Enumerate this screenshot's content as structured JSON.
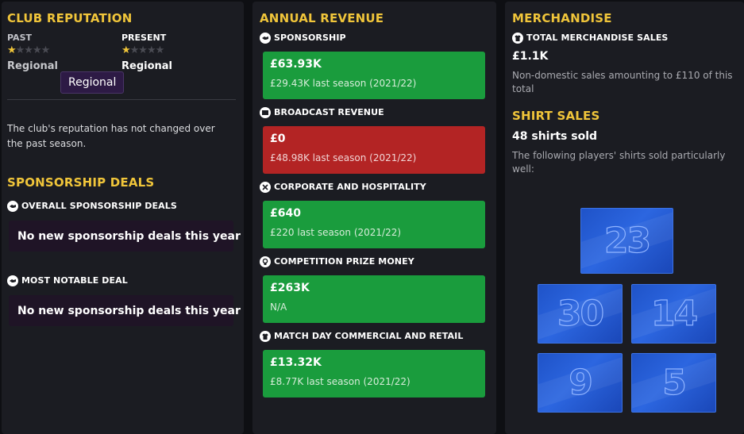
{
  "colors": {
    "heading": "#f0c53a",
    "revenue_positive": "#1a9c3d",
    "revenue_negative": "#b32424",
    "panel_bg": "#1b1c22",
    "tooltip_bg": "#2d1a45",
    "shirt_blue": "#2c66e0"
  },
  "reputation": {
    "title": "CLUB REPUTATION",
    "past_label": "PAST",
    "present_label": "PRESENT",
    "past_stars": 1.5,
    "present_stars": 1.5,
    "max_stars": 5,
    "past_value": "Regional",
    "present_value": "Regional",
    "tooltip": "Regional",
    "description": "The club's reputation has not changed over the past season."
  },
  "sponsorship": {
    "title": "SPONSORSHIP DEALS",
    "overall_label": "OVERALL SPONSORSHIP DEALS",
    "overall_icon": "handshake-icon",
    "overall_text": "No new sponsorship deals this year",
    "notable_label": "MOST NOTABLE DEAL",
    "notable_icon": "handshake-icon",
    "notable_text": "No new sponsorship deals this year"
  },
  "revenue": {
    "title": "ANNUAL REVENUE",
    "items": [
      {
        "label": "SPONSORSHIP",
        "icon": "handshake-icon",
        "value": "£63.93K",
        "previous": "£29.43K last season (2021/22)",
        "status": "green"
      },
      {
        "label": "BROADCAST REVENUE",
        "icon": "tv-icon",
        "value": "£0",
        "previous": "£48.98K last season (2021/22)",
        "status": "red"
      },
      {
        "label": "CORPORATE AND HOSPITALITY",
        "icon": "cutlery-icon",
        "value": "£640",
        "previous": "£220 last season (2021/22)",
        "status": "green"
      },
      {
        "label": "COMPETITION PRIZE MONEY",
        "icon": "trophy-icon",
        "value": "£263K",
        "previous": "N/A",
        "status": "green"
      },
      {
        "label": "MATCH DAY COMMERCIAL AND RETAIL",
        "icon": "shirt-icon",
        "value": "£13.32K",
        "previous": "£8.77K last season (2021/22)",
        "status": "green"
      }
    ]
  },
  "merchandise": {
    "title": "MERCHANDISE",
    "total_label": "TOTAL MERCHANDISE SALES",
    "total_icon": "shirt-icon",
    "total_value": "£1.1K",
    "non_domestic": "Non-domestic sales amounting to £110 of this total",
    "shirts_title": "SHIRT SALES",
    "shirts_sold": "48 shirts sold",
    "shirts_desc": "The following players' shirts sold particularly well:",
    "shirt_numbers": [
      "23",
      "30",
      "14",
      "9",
      "5"
    ]
  }
}
